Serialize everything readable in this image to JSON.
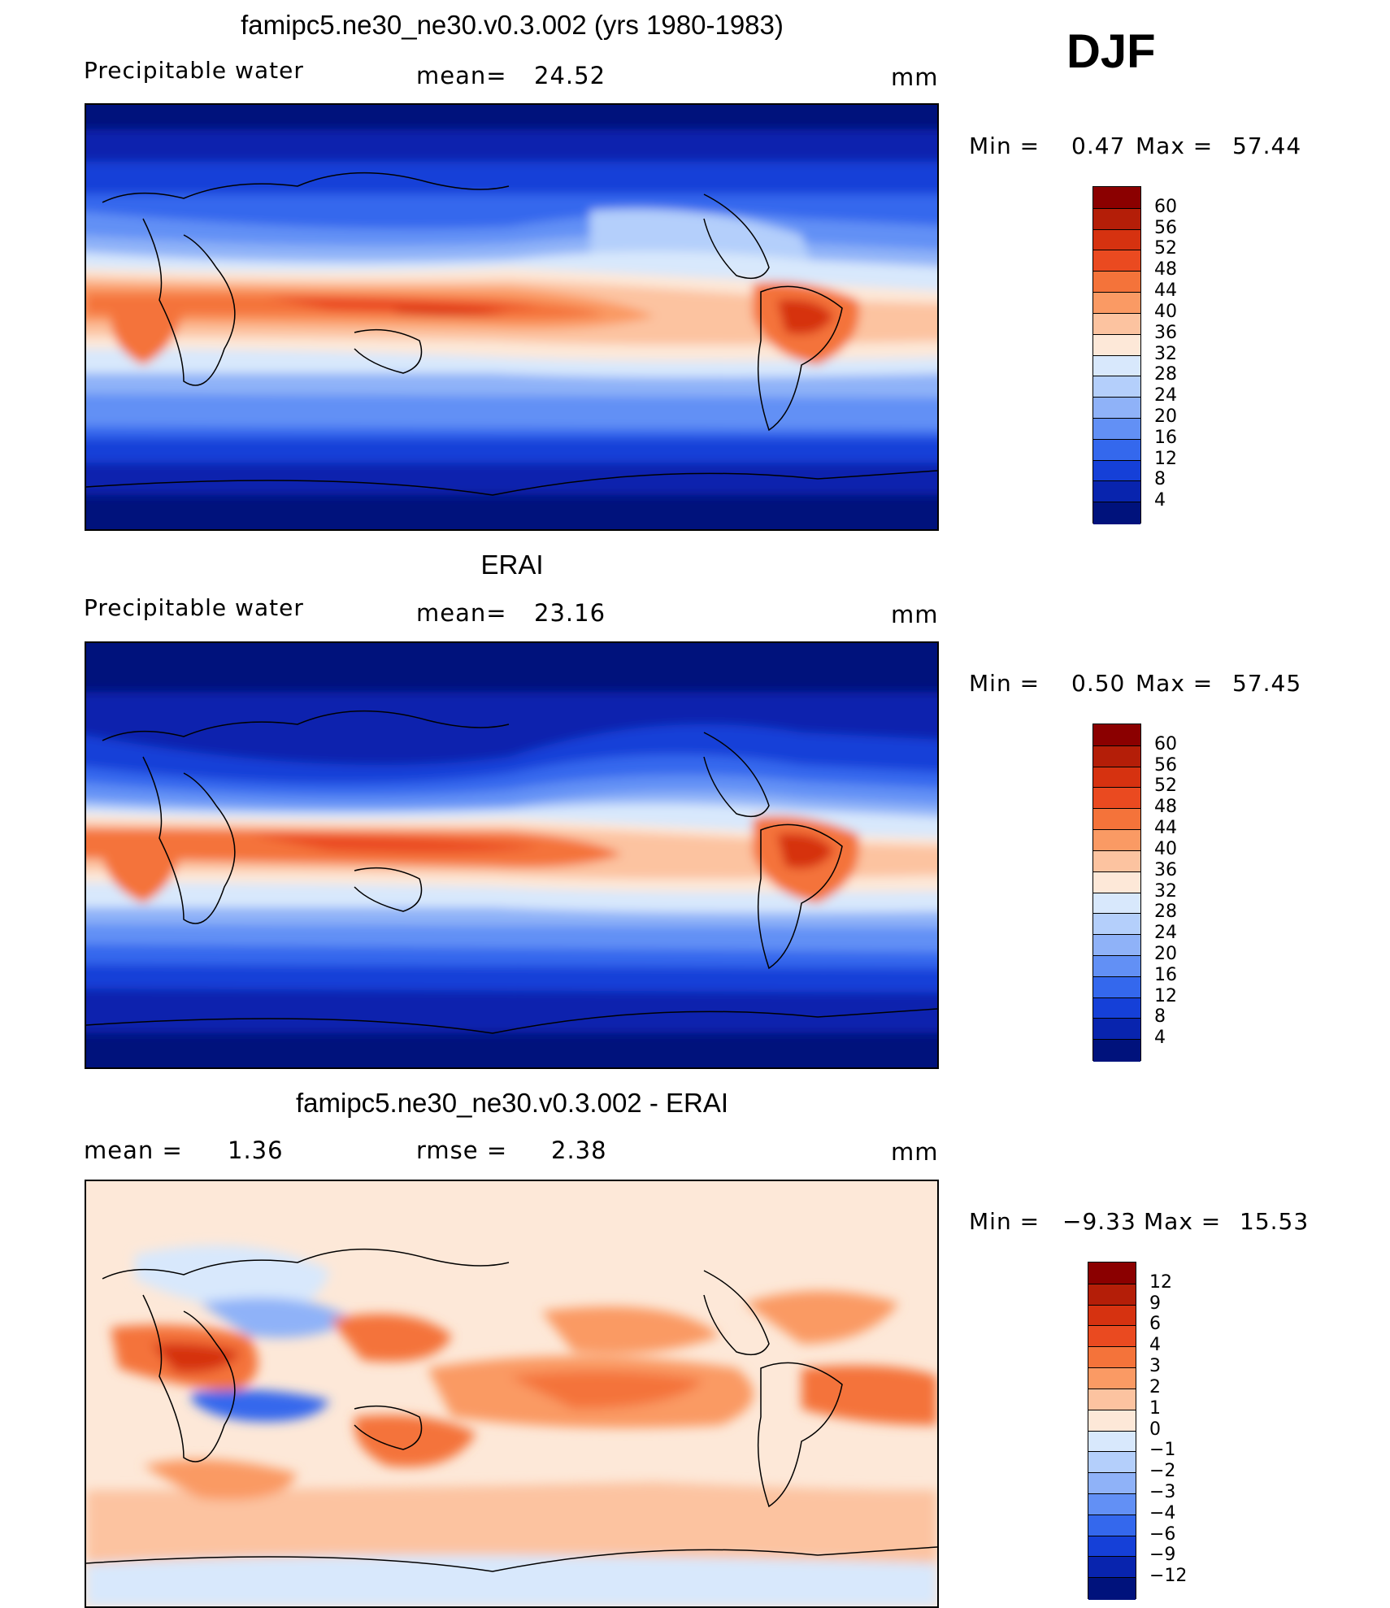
{
  "season": "DJF",
  "unit": "mm",
  "panels": [
    {
      "title": "famipc5.ne30_ne30.v0.3.002 (yrs 1980-1983)",
      "variable": "Precipitable water",
      "mean_label": "mean=",
      "mean_value": "24.52",
      "min_label": "Min =",
      "min_value": "0.47",
      "max_label": "Max =",
      "max_value": "57.44"
    },
    {
      "title": "ERAI",
      "variable": "Precipitable water",
      "mean_label": "mean=",
      "mean_value": "23.16",
      "min_label": "Min =",
      "min_value": "0.50",
      "max_label": "Max =",
      "max_value": "57.45"
    },
    {
      "title": "famipc5.ne30_ne30.v0.3.002 - ERAI",
      "mean_label": "mean =",
      "mean_value": "1.36",
      "rmse_label": "rmse =",
      "rmse_value": "2.38",
      "min_label": "Min =",
      "min_value": "−9.33",
      "max_label": "Max =",
      "max_value": "15.53"
    }
  ],
  "chart_data": [
    {
      "type": "heatmap",
      "title": "famipc5.ne30_ne30.v0.3.002 (yrs 1980-1983)",
      "variable": "Precipitable water",
      "units": "mm",
      "mean": 24.52,
      "min": 0.47,
      "max": 57.44,
      "colorbar_levels": [
        4,
        8,
        12,
        16,
        20,
        24,
        28,
        32,
        36,
        40,
        44,
        48,
        52,
        56,
        60
      ],
      "colorbar_labels": [
        "60",
        "56",
        "52",
        "48",
        "44",
        "40",
        "36",
        "32",
        "28",
        "24",
        "20",
        "16",
        "12",
        "8",
        "4"
      ],
      "colors": [
        "#8b0000",
        "#b41e08",
        "#d63210",
        "#ea4a20",
        "#f4733a",
        "#fa9a64",
        "#fcc3a0",
        "#fde8d8",
        "#d8e8fc",
        "#b4cffb",
        "#8fb2f8",
        "#6290f5",
        "#3468ed",
        "#1540d8",
        "#0824ae",
        "#00127c"
      ]
    },
    {
      "type": "heatmap",
      "title": "ERAI",
      "variable": "Precipitable water",
      "units": "mm",
      "mean": 23.16,
      "min": 0.5,
      "max": 57.45,
      "colorbar_levels": [
        4,
        8,
        12,
        16,
        20,
        24,
        28,
        32,
        36,
        40,
        44,
        48,
        52,
        56,
        60
      ],
      "colorbar_labels": [
        "60",
        "56",
        "52",
        "48",
        "44",
        "40",
        "36",
        "32",
        "28",
        "24",
        "20",
        "16",
        "12",
        "8",
        "4"
      ],
      "colors": [
        "#8b0000",
        "#b41e08",
        "#d63210",
        "#ea4a20",
        "#f4733a",
        "#fa9a64",
        "#fcc3a0",
        "#fde8d8",
        "#d8e8fc",
        "#b4cffb",
        "#8fb2f8",
        "#6290f5",
        "#3468ed",
        "#1540d8",
        "#0824ae",
        "#00127c"
      ]
    },
    {
      "type": "heatmap",
      "title": "famipc5.ne30_ne30.v0.3.002 - ERAI",
      "units": "mm",
      "mean": 1.36,
      "rmse": 2.38,
      "min": -9.33,
      "max": 15.53,
      "colorbar_levels": [
        -12,
        -9,
        -6,
        -4,
        -3,
        -2,
        -1,
        0,
        1,
        2,
        3,
        4,
        6,
        9,
        12
      ],
      "colorbar_labels": [
        "12",
        "9",
        "6",
        "4",
        "3",
        "2",
        "1",
        "0",
        "−1",
        "−2",
        "−3",
        "−4",
        "−6",
        "−9",
        "−12"
      ],
      "colors": [
        "#8b0000",
        "#b41e08",
        "#d63210",
        "#ea4a20",
        "#f4733a",
        "#fa9a64",
        "#fcc3a0",
        "#fde8d8",
        "#d8e8fc",
        "#b4cffb",
        "#8fb2f8",
        "#6290f5",
        "#3468ed",
        "#1540d8",
        "#0824ae",
        "#00127c"
      ]
    }
  ]
}
